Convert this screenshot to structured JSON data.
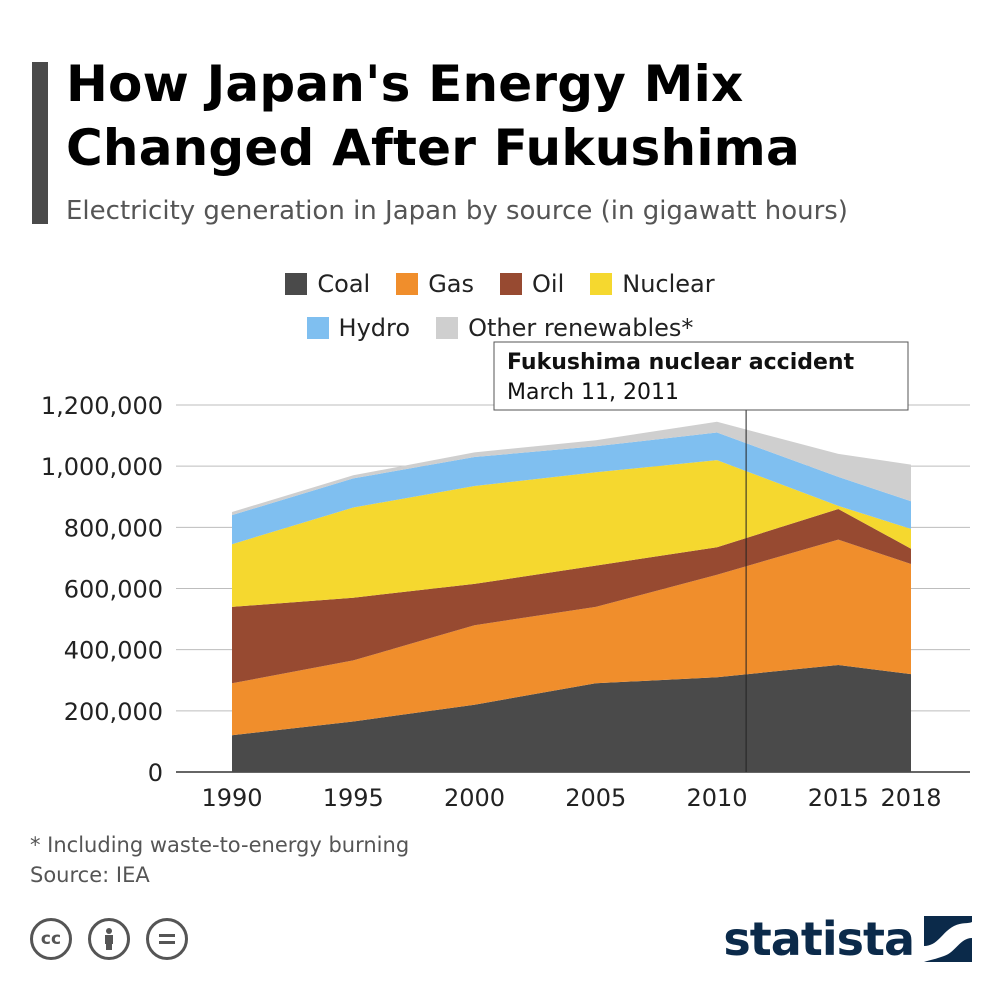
{
  "header": {
    "title_line1": "How Japan's Energy Mix",
    "title_line2": "Changed After Fukushima",
    "subtitle": "Electricity generation in Japan by source (in gigawatt hours)"
  },
  "legend": {
    "row1": [
      {
        "label": "Coal",
        "color": "#4a4a4a"
      },
      {
        "label": "Gas",
        "color": "#f08e2c"
      },
      {
        "label": "Oil",
        "color": "#974a31"
      },
      {
        "label": "Nuclear",
        "color": "#f5d82f"
      }
    ],
    "row2": [
      {
        "label": "Hydro",
        "color": "#7fbff0"
      },
      {
        "label": "Other renewables*",
        "color": "#cfcfcf"
      }
    ]
  },
  "chart_data": {
    "type": "area",
    "stacked": true,
    "title": "How Japan's Energy Mix Changed After Fukushima",
    "subtitle": "Electricity generation in Japan by source (in gigawatt hours)",
    "x": [
      1990,
      1995,
      2000,
      2005,
      2010,
      2015,
      2018
    ],
    "x_tick_labels": [
      "1990",
      "1995",
      "2000",
      "2005",
      "2010",
      "2015",
      "2018"
    ],
    "y_ticks": [
      0,
      200000,
      400000,
      600000,
      800000,
      1000000,
      1200000
    ],
    "y_tick_labels": [
      "0",
      "200,000",
      "400,000",
      "600,000",
      "800,000",
      "1,000,000",
      "1,200,000"
    ],
    "ylim": [
      0,
      1200000
    ],
    "xlim": [
      1990,
      2018
    ],
    "grid": true,
    "legend_position": "top",
    "series": [
      {
        "name": "Coal",
        "color": "#4a4a4a",
        "values": [
          120000,
          165000,
          220000,
          290000,
          310000,
          350000,
          320000
        ]
      },
      {
        "name": "Gas",
        "color": "#f08e2c",
        "values": [
          170000,
          200000,
          260000,
          250000,
          335000,
          410000,
          360000
        ]
      },
      {
        "name": "Oil",
        "color": "#974a31",
        "values": [
          250000,
          205000,
          135000,
          135000,
          90000,
          100000,
          50000
        ]
      },
      {
        "name": "Nuclear",
        "color": "#f5d82f",
        "values": [
          205000,
          295000,
          320000,
          305000,
          285000,
          10000,
          65000
        ]
      },
      {
        "name": "Hydro",
        "color": "#7fbff0",
        "values": [
          95000,
          95000,
          95000,
          85000,
          90000,
          95000,
          90000
        ]
      },
      {
        "name": "Other renewables*",
        "color": "#cfcfcf",
        "values": [
          10000,
          10000,
          15000,
          20000,
          35000,
          75000,
          120000
        ]
      }
    ],
    "annotation": {
      "x": 2011.2,
      "line1": "Fukushima nuclear accident",
      "line2": "March 11, 2011"
    }
  },
  "footer": {
    "note": "* Including waste-to-energy burning",
    "source": "Source: IEA",
    "cc_icons": [
      "cc-icon",
      "attribution-icon",
      "no-derivatives-icon"
    ],
    "brand": "statista"
  }
}
